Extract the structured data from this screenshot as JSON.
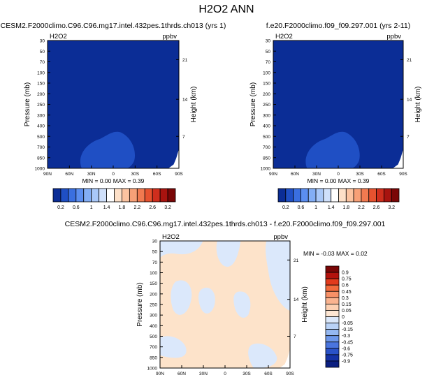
{
  "page": {
    "title": "H2O2 ANN"
  },
  "colors": {
    "field_dark_blue": "#0b2d96",
    "field_medium_blue": "#1f4fc4",
    "diff_light_blue": "#dbe8fb",
    "diff_peach": "#fde3ca",
    "outline": "#000000"
  },
  "chart_data": [
    {
      "type": "heatmap",
      "title": "CESM2.F2000climo.C96.C96.mg17.intel.432pes.1thrds.ch013 (yrs 1)",
      "var_label": "H2O2",
      "units_label": "ppbv",
      "ylabel": "Pressure (mb)",
      "y2label": "Height (km)",
      "x_ticks": [
        "90N",
        "60N",
        "30N",
        "0",
        "30S",
        "60S",
        "90S"
      ],
      "y_ticks": [
        "30",
        "50",
        "70",
        "100",
        "150",
        "200",
        "250",
        "300",
        "400",
        "500",
        "700",
        "850",
        "1000"
      ],
      "y2_ticks": [
        "21",
        "14",
        "7"
      ],
      "stats_text": "MIN =  0.00  MAX =  0.39",
      "colorbar_labels": [
        "0.2",
        "0.6",
        "1",
        "1.4",
        "1.8",
        "2.2",
        "2.6",
        "3.2"
      ],
      "colorbar_colors": [
        "#0b2d96",
        "#1f4fc4",
        "#3a6fe0",
        "#5b8ef0",
        "#83aef5",
        "#a9c8f8",
        "#cfe0fb",
        "#ffffff",
        "#fde0c8",
        "#fbc3a0",
        "#f7a077",
        "#f17a50",
        "#e6522f",
        "#cf2e1d",
        "#a8130f",
        "#7a0606"
      ]
    },
    {
      "type": "heatmap",
      "title": "f.e20.F2000climo.f09_f09.297.001 (yrs 2-11)",
      "var_label": "H2O2",
      "units_label": "ppbv",
      "ylabel": "Pressure (mb)",
      "y2label": "Height (km)",
      "x_ticks": [
        "90N",
        "60N",
        "30N",
        "0",
        "30S",
        "60S",
        "90S"
      ],
      "y_ticks": [
        "30",
        "50",
        "70",
        "100",
        "150",
        "200",
        "250",
        "300",
        "400",
        "500",
        "700",
        "850",
        "1000"
      ],
      "y2_ticks": [
        "21",
        "14",
        "7"
      ],
      "stats_text": "MIN =  0.00  MAX =  0.39",
      "colorbar_labels": [
        "0.2",
        "0.6",
        "1",
        "1.4",
        "1.8",
        "2.2",
        "2.6",
        "3.2"
      ],
      "colorbar_colors": [
        "#0b2d96",
        "#1f4fc4",
        "#3a6fe0",
        "#5b8ef0",
        "#83aef5",
        "#a9c8f8",
        "#cfe0fb",
        "#ffffff",
        "#fde0c8",
        "#fbc3a0",
        "#f7a077",
        "#f17a50",
        "#e6522f",
        "#cf2e1d",
        "#a8130f",
        "#7a0606"
      ]
    },
    {
      "type": "heatmap",
      "title": "CESM2.F2000climo.C96.C96.mg17.intel.432pes.1thrds.ch013 - f.e20.F2000climo.f09_f09.297.001",
      "var_label": "H2O2",
      "units_label": "ppbv",
      "ylabel": "Pressure (mb)",
      "y2label": "Height (km)",
      "x_ticks": [
        "90N",
        "60N",
        "30N",
        "0",
        "30S",
        "60S",
        "90S"
      ],
      "y_ticks": [
        "30",
        "50",
        "70",
        "100",
        "150",
        "200",
        "250",
        "300",
        "400",
        "500",
        "700",
        "850",
        "1000"
      ],
      "y2_ticks": [
        "21",
        "14",
        "7"
      ],
      "stats_text": "MIN = -0.03  MAX =  0.02",
      "colorbar_labels": [
        "0.9",
        "0.75",
        "0.6",
        "0.45",
        "0.3",
        "0.15",
        "0.05",
        "0",
        "-0.05",
        "-0.15",
        "-0.3",
        "-0.45",
        "-0.6",
        "-0.75",
        "-0.9"
      ],
      "colorbar_colors": [
        "#7a0606",
        "#b3120d",
        "#e23a1c",
        "#f26a3c",
        "#f79066",
        "#fab38f",
        "#fdd0b2",
        "#fde6d3",
        "#dbe8fb",
        "#b9d2f7",
        "#95b8f1",
        "#6e98ea",
        "#4a75de",
        "#2a52c8",
        "#1532a6",
        "#0b1f80"
      ]
    }
  ]
}
